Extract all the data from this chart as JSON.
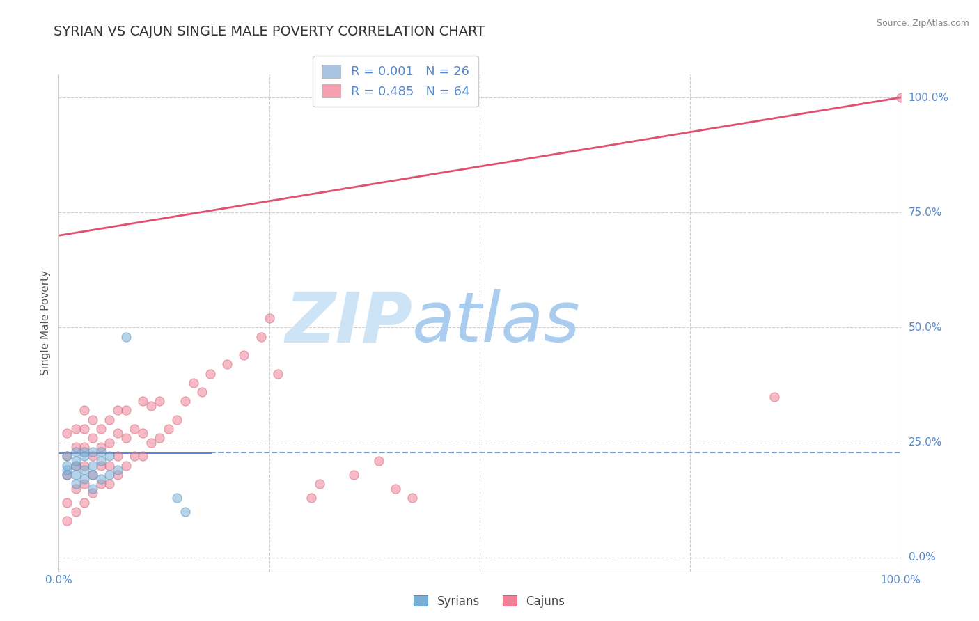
{
  "title": "SYRIAN VS CAJUN SINGLE MALE POVERTY CORRELATION CHART",
  "source": "Source: ZipAtlas.com",
  "ylabel": "Single Male Poverty",
  "xlabel": "",
  "xlim": [
    0.0,
    1.0
  ],
  "ylim": [
    -0.03,
    1.05
  ],
  "legend_entries": [
    {
      "label": "R = 0.001   N = 26",
      "color": "#a8c4e0"
    },
    {
      "label": "R = 0.485   N = 64",
      "color": "#f4a0b0"
    }
  ],
  "syrian_color": "#7aafd4",
  "cajun_color": "#f08098",
  "syrian_edge": "#5090c0",
  "cajun_edge": "#d06070",
  "trend_blue_color": "#4477cc",
  "trend_pink_color": "#e05070",
  "watermark_zip_color": "#cce4f5",
  "watermark_atlas_color": "#aaccee",
  "background_color": "#ffffff",
  "grid_color": "#cccccc",
  "title_color": "#333333",
  "axis_label_color": "#5588cc",
  "syrian_x": [
    0.01,
    0.01,
    0.01,
    0.01,
    0.02,
    0.02,
    0.02,
    0.02,
    0.02,
    0.03,
    0.03,
    0.03,
    0.03,
    0.04,
    0.04,
    0.04,
    0.04,
    0.05,
    0.05,
    0.05,
    0.06,
    0.06,
    0.07,
    0.08,
    0.14,
    0.15
  ],
  "syrian_y": [
    0.18,
    0.19,
    0.2,
    0.22,
    0.16,
    0.18,
    0.2,
    0.21,
    0.23,
    0.17,
    0.19,
    0.22,
    0.23,
    0.15,
    0.18,
    0.2,
    0.23,
    0.17,
    0.21,
    0.23,
    0.18,
    0.22,
    0.19,
    0.48,
    0.13,
    0.1
  ],
  "cajun_x": [
    0.01,
    0.01,
    0.01,
    0.01,
    0.01,
    0.02,
    0.02,
    0.02,
    0.02,
    0.02,
    0.03,
    0.03,
    0.03,
    0.03,
    0.03,
    0.03,
    0.04,
    0.04,
    0.04,
    0.04,
    0.04,
    0.05,
    0.05,
    0.05,
    0.05,
    0.06,
    0.06,
    0.06,
    0.06,
    0.07,
    0.07,
    0.07,
    0.07,
    0.08,
    0.08,
    0.08,
    0.09,
    0.09,
    0.1,
    0.1,
    0.1,
    0.11,
    0.11,
    0.12,
    0.12,
    0.13,
    0.14,
    0.15,
    0.16,
    0.17,
    0.18,
    0.2,
    0.22,
    0.24,
    0.25,
    0.26,
    0.3,
    0.31,
    0.35,
    0.38,
    0.4,
    0.42,
    0.85,
    1.0
  ],
  "cajun_y": [
    0.08,
    0.12,
    0.18,
    0.22,
    0.27,
    0.1,
    0.15,
    0.2,
    0.24,
    0.28,
    0.12,
    0.16,
    0.2,
    0.24,
    0.28,
    0.32,
    0.14,
    0.18,
    0.22,
    0.26,
    0.3,
    0.16,
    0.2,
    0.24,
    0.28,
    0.16,
    0.2,
    0.25,
    0.3,
    0.18,
    0.22,
    0.27,
    0.32,
    0.2,
    0.26,
    0.32,
    0.22,
    0.28,
    0.22,
    0.27,
    0.34,
    0.25,
    0.33,
    0.26,
    0.34,
    0.28,
    0.3,
    0.34,
    0.38,
    0.36,
    0.4,
    0.42,
    0.44,
    0.48,
    0.52,
    0.4,
    0.13,
    0.16,
    0.18,
    0.21,
    0.15,
    0.13,
    0.35,
    1.0
  ],
  "syrian_trend_x": [
    0.0,
    1.0
  ],
  "syrian_trend_y": [
    0.228,
    0.228
  ],
  "cajun_trend_x": [
    0.0,
    1.0
  ],
  "cajun_trend_y": [
    0.7,
    1.0
  ],
  "marker_size": 90,
  "marker_alpha": 0.55,
  "title_fontsize": 14,
  "label_fontsize": 11,
  "tick_fontsize": 11
}
